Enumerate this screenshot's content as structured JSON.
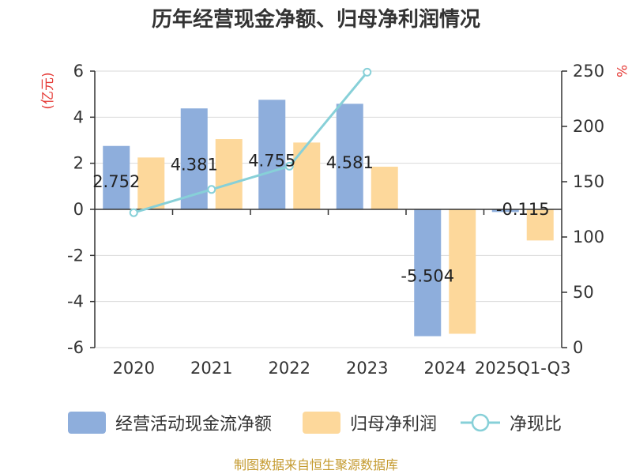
{
  "chart_data": {
    "type": "bar",
    "title": "历年经营现金净额、归母净利润情况",
    "categories": [
      "2020",
      "2021",
      "2022",
      "2023",
      "2024",
      "2025Q1-Q3"
    ],
    "series": [
      {
        "name": "经营活动现金流净额",
        "axis": "left",
        "color": "#8eaedc",
        "values": [
          2.752,
          4.381,
          4.755,
          4.581,
          -5.504,
          -0.115
        ]
      },
      {
        "name": "归母净利润",
        "axis": "left",
        "color": "#fdd89b",
        "values": [
          2.25,
          3.05,
          2.9,
          1.85,
          -5.4,
          -1.35
        ]
      },
      {
        "name": "净现比",
        "axis": "right",
        "type": "line",
        "color": "#87d0d8",
        "values": [
          122,
          143,
          164,
          249,
          null,
          null
        ]
      }
    ],
    "data_labels": [
      "2.752",
      "4.381",
      "4.755",
      "4.581",
      "-5.504",
      "-0.115"
    ],
    "y_left": {
      "label": "(亿元)",
      "ylim": [
        -6,
        6
      ],
      "ticks": [
        "-6",
        "-4",
        "-2",
        "0",
        "2",
        "4",
        "6"
      ]
    },
    "y_right": {
      "label": "%",
      "ylim": [
        0,
        250
      ],
      "ticks": [
        "0",
        "50",
        "100",
        "150",
        "200",
        "250"
      ]
    },
    "legend_position": "bottom",
    "grid": true
  },
  "source": "制图数据来自恒生聚源数据库"
}
